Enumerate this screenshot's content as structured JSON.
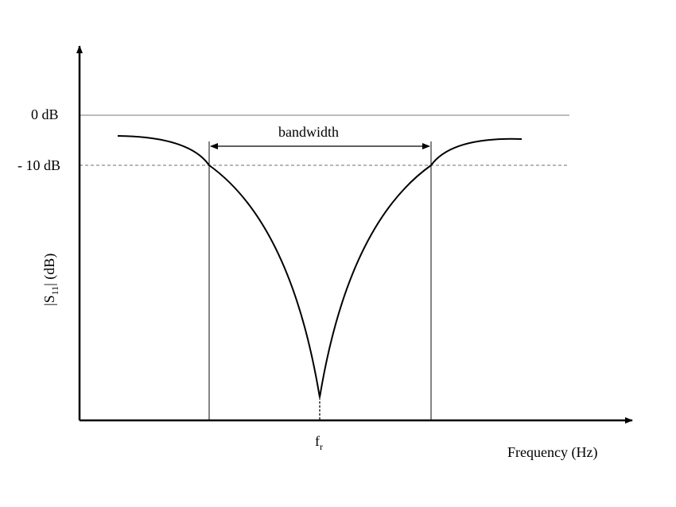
{
  "labels": {
    "zero_db": "0 dB",
    "minus_ten_db": "- 10 dB",
    "bandwidth": "bandwidth",
    "resonance_main": "f",
    "resonance_sub": "r",
    "y_axis_main": "|S",
    "y_axis_sub": "11",
    "y_axis_tail": "| (dB)",
    "x_axis": "Frequency (Hz)"
  },
  "colors": {
    "curve": "#000000",
    "axes": "#000000",
    "reference_line": "#a6a6a6",
    "threshold_line": "#8c8c8c",
    "markers": "#333333"
  }
}
